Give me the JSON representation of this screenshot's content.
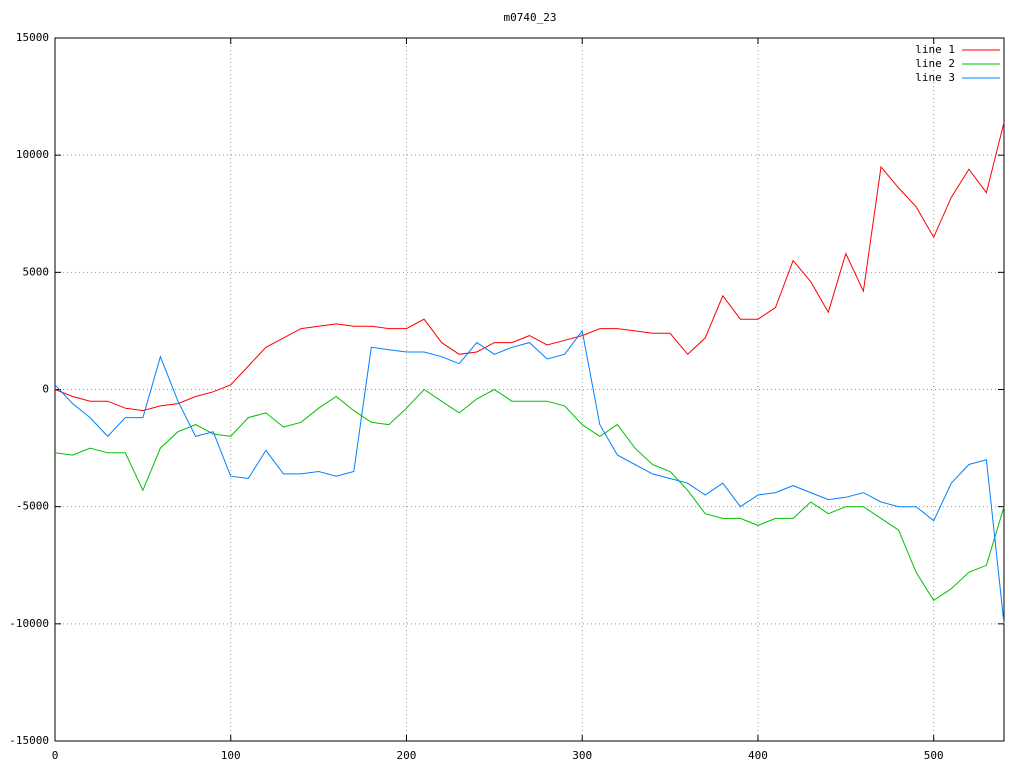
{
  "chart_data": {
    "type": "line",
    "title": "m0740_23",
    "x": [
      0,
      10,
      20,
      30,
      40,
      50,
      60,
      70,
      80,
      90,
      100,
      110,
      120,
      130,
      140,
      150,
      160,
      170,
      180,
      190,
      200,
      210,
      220,
      230,
      240,
      250,
      260,
      270,
      280,
      290,
      300,
      310,
      320,
      330,
      340,
      350,
      360,
      370,
      380,
      390,
      400,
      410,
      420,
      430,
      440,
      450,
      460,
      470,
      480,
      490,
      500,
      510,
      520,
      530,
      540
    ],
    "series": [
      {
        "name": "line 1",
        "color": "#ff0000",
        "values": [
          0,
          -300,
          -500,
          -500,
          -800,
          -900,
          -700,
          -600,
          -300,
          -100,
          200,
          1000,
          1800,
          2200,
          2600,
          2700,
          2800,
          2700,
          2700,
          2600,
          2600,
          3000,
          2000,
          1500,
          1600,
          2000,
          2000,
          2300,
          1900,
          2100,
          2300,
          2600,
          2600,
          2500,
          2400,
          2400,
          1500,
          2200,
          4000,
          3000,
          3000,
          3500,
          5500,
          4600,
          3300,
          5800,
          4200,
          9500,
          8600,
          7800,
          6500,
          8200,
          9400,
          8400,
          11400
        ]
      },
      {
        "name": "line 2",
        "color": "#00c000",
        "values": [
          -2700,
          -2800,
          -2500,
          -2700,
          -2700,
          -4300,
          -2500,
          -1800,
          -1500,
          -1900,
          -2000,
          -1200,
          -1000,
          -1600,
          -1400,
          -800,
          -300,
          -900,
          -1400,
          -1500,
          -800,
          0,
          -500,
          -1000,
          -400,
          0,
          -500,
          -500,
          -500,
          -700,
          -1500,
          -2000,
          -1500,
          -2500,
          -3200,
          -3500,
          -4300,
          -5300,
          -5500,
          -5500,
          -5800,
          -5500,
          -5500,
          -4800,
          -5300,
          -5000,
          -5000,
          -5500,
          -6000,
          -7800,
          -9000,
          -8500,
          -7800,
          -7500,
          -5000
        ]
      },
      {
        "name": "line 3",
        "color": "#0080ff",
        "values": [
          200,
          -600,
          -1200,
          -2000,
          -1200,
          -1200,
          1400,
          -500,
          -2000,
          -1800,
          -3700,
          -3800,
          -2600,
          -3600,
          -3600,
          -3500,
          -3700,
          -3500,
          1800,
          1700,
          1600,
          1600,
          1400,
          1100,
          2000,
          1500,
          1800,
          2000,
          1300,
          1500,
          2500,
          -1500,
          -2800,
          -3200,
          -3600,
          -3800,
          -4000,
          -4500,
          -4000,
          -5000,
          -4500,
          -4400,
          -4100,
          -4400,
          -4700,
          -4600,
          -4400,
          -4800,
          -5000,
          -5000,
          -5600,
          -4000,
          -3200,
          -3000,
          -10000
        ]
      }
    ],
    "xlim": [
      0,
      540
    ],
    "ylim": [
      -15000,
      15000
    ],
    "xticks": [
      0,
      100,
      200,
      300,
      400,
      500
    ],
    "yticks": [
      -15000,
      -10000,
      -5000,
      0,
      5000,
      10000,
      15000
    ],
    "grid": true,
    "legend": "top-right"
  }
}
